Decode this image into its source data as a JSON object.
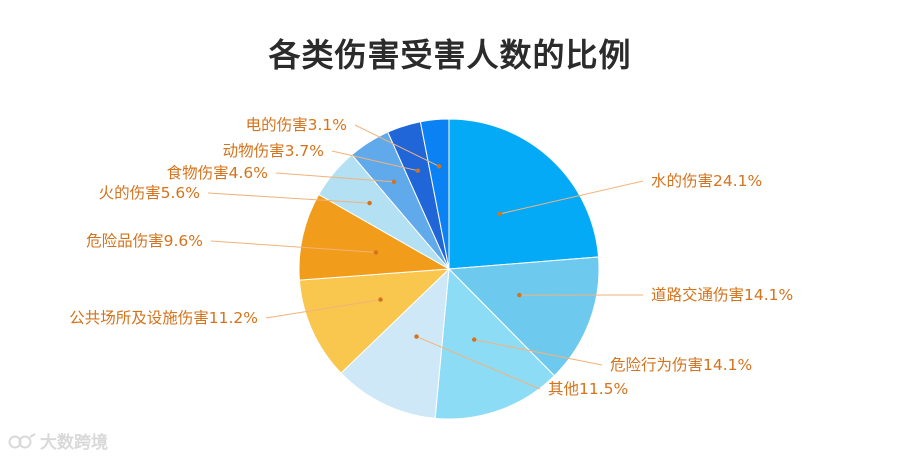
{
  "chart_data": {
    "type": "pie",
    "title": "各类伤害受害人数的比例",
    "slices": [
      {
        "label": "水的伤害",
        "value": 24.1,
        "display": "水的伤害24.1%",
        "color": "#05aaf6"
      },
      {
        "label": "道路交通伤害",
        "value": 14.1,
        "display": "道路交通伤害14.1%",
        "color": "#6ec9ef"
      },
      {
        "label": "危险行为伤害",
        "value": 14.1,
        "display": "危险行为伤害14.1%",
        "color": "#8ddcf6"
      },
      {
        "label": "其他",
        "value": 11.5,
        "display": "其他11.5%",
        "color": "#cfe8f8"
      },
      {
        "label": "公共场所及设施伤害",
        "value": 11.2,
        "display": "公共场所及设施伤害11.2%",
        "color": "#f9c64e"
      },
      {
        "label": "危险品伤害",
        "value": 9.6,
        "display": "危险品伤害9.6%",
        "color": "#f29c1b"
      },
      {
        "label": "火的伤害",
        "value": 5.6,
        "display": "火的伤害5.6%",
        "color": "#b3e0f2"
      },
      {
        "label": "食物伤害",
        "value": 4.6,
        "display": "食物伤害4.6%",
        "color": "#60aaeb"
      },
      {
        "label": "动物伤害",
        "value": 3.7,
        "display": "动物伤害3.7%",
        "color": "#2166d9"
      },
      {
        "label": "电的伤害",
        "value": 3.1,
        "display": "电的伤害3.1%",
        "color": "#0a82f4"
      }
    ],
    "label_color": "#d4731c",
    "leader_line_color": "#f3b27a",
    "leader_dot_color": "#d4731c"
  },
  "watermark": {
    "text": "大数跨境",
    "icon": "logo-icon"
  }
}
